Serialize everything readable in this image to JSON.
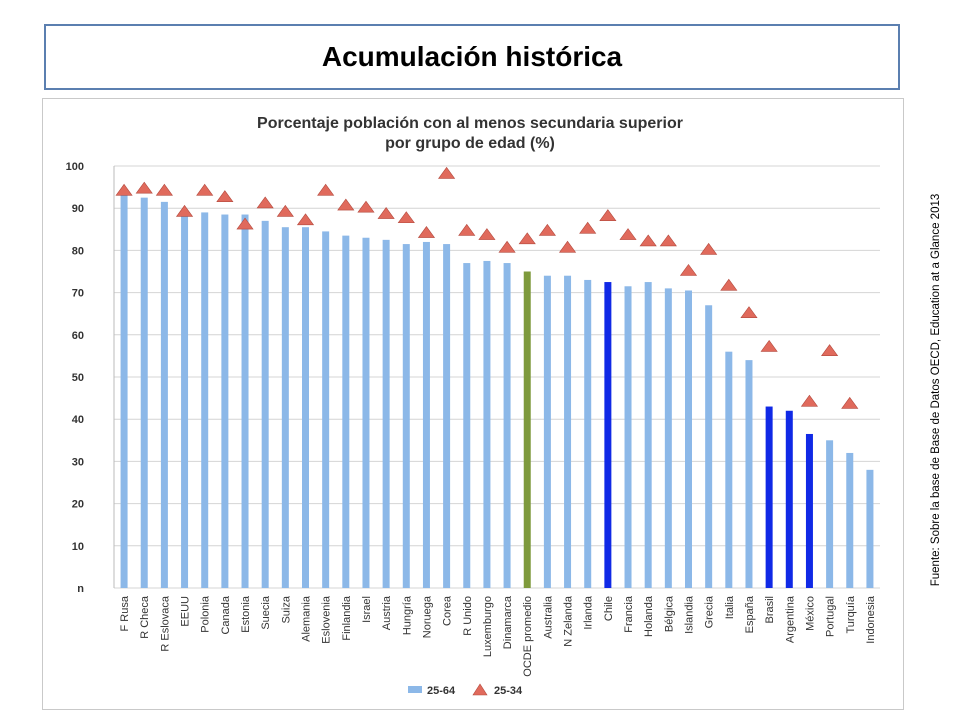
{
  "slide": {
    "title": "Acumulación histórica",
    "source": "Fuente: Sobre la base de Base de Datos OECD, Education at a Glance 2013"
  },
  "colors": {
    "bar_default": "#8cb8e8",
    "bar_oecd": "#7e9a3c",
    "bar_highlight": "#1029e6",
    "marker": "#e06a5c"
  },
  "chart_data": {
    "type": "bar",
    "title": "Porcentaje población con al menos secundaria superior por grupo de edad (%)",
    "title_lines": [
      "Porcentaje población con al menos secundaria superior",
      "por grupo de edad (%)"
    ],
    "ylim": [
      0,
      100
    ],
    "yticks": [
      "n",
      "10",
      "20",
      "30",
      "40",
      "50",
      "60",
      "70",
      "80",
      "90",
      "100"
    ],
    "grid": true,
    "legend_position": "bottom",
    "categories": [
      "F Rusa",
      "R Checa",
      "R Eslovaca",
      "EEUU",
      "Polonia",
      "Canada",
      "Estonia",
      "Suecia",
      "Suiza",
      "Alemania",
      "Eslovenia",
      "Finlandia",
      "Israel",
      "Austria",
      "Hungría",
      "Noruega",
      "Corea",
      "R Unido",
      "Luxemburgo",
      "Dinamarca",
      "OCDE promedio",
      "Australia",
      "N Zelanda",
      "Irlanda",
      "Chile",
      "Francia",
      "Holanda",
      "Bélgica",
      "Islandia",
      "Grecia",
      "Italia",
      "España",
      "Brasil",
      "Argentina",
      "México",
      "Portugal",
      "Turquía",
      "Indonesia"
    ],
    "highlight": {
      "oecd": [
        "OCDE promedio"
      ],
      "latam": [
        "Chile",
        "Brasil",
        "Argentina",
        "México"
      ]
    },
    "series": [
      {
        "name": "25-64",
        "mark": "bar",
        "values": [
          94,
          92.5,
          91.5,
          89,
          89,
          88.5,
          88.5,
          87,
          85.5,
          85.5,
          84.5,
          83.5,
          83,
          82.5,
          81.5,
          82,
          81.5,
          77,
          77.5,
          77,
          75,
          74,
          74,
          73,
          72.5,
          71.5,
          72.5,
          71,
          70.5,
          67,
          56,
          54,
          43,
          42,
          36.5,
          35,
          32,
          28
        ]
      },
      {
        "name": "25-34",
        "mark": "triangle",
        "values": [
          94,
          94.5,
          94,
          89,
          94,
          92.5,
          86,
          91,
          89,
          87,
          94,
          90.5,
          90,
          88.5,
          87.5,
          84,
          98,
          84.5,
          83.5,
          80.5,
          82.5,
          84.5,
          80.5,
          85,
          88,
          83.5,
          82,
          82,
          75,
          80,
          71.5,
          65,
          57,
          null,
          44,
          56,
          43.5,
          null
        ]
      }
    ],
    "legend": [
      {
        "label": "25-64",
        "marker": "bar"
      },
      {
        "label": "25-34",
        "marker": "triangle"
      }
    ]
  }
}
